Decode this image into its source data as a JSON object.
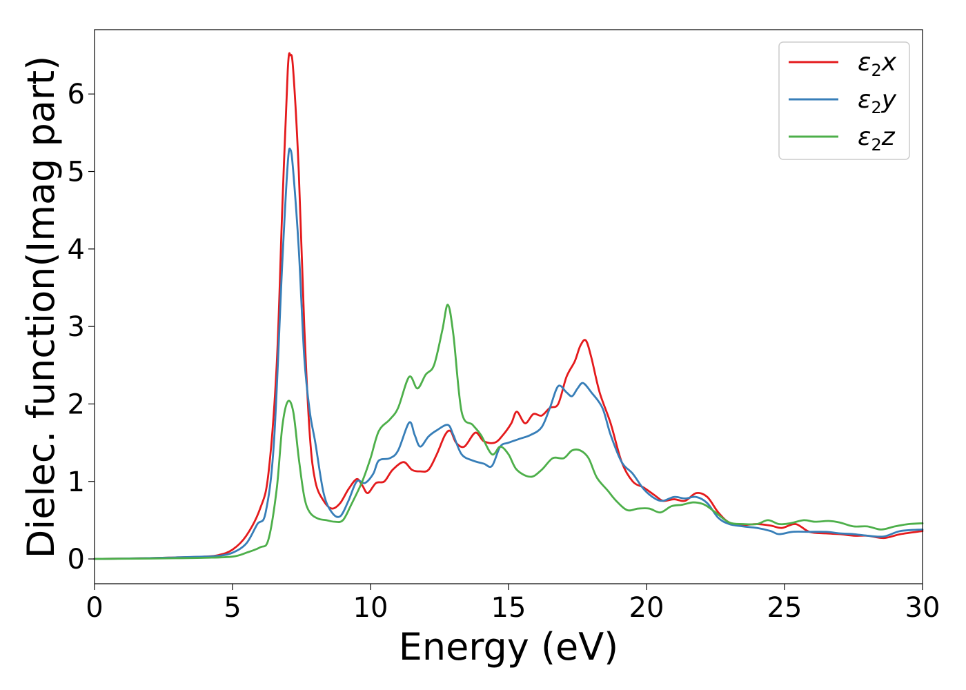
{
  "chart_data": {
    "type": "line",
    "xlabel": "Energy (eV)",
    "ylabel": "Dielec. function(Imag part)",
    "xlim": [
      0,
      30
    ],
    "ylim": [
      -0.32,
      6.83
    ],
    "xticks": [
      0,
      5,
      10,
      15,
      20,
      25,
      30
    ],
    "yticks": [
      0,
      1,
      2,
      3,
      4,
      5,
      6
    ],
    "grid": false,
    "legend_position": "top-right",
    "series": [
      {
        "name": "ε₂x",
        "legend_base": "ε",
        "legend_sub": "2",
        "legend_suffix": "x",
        "color": "#e41a1c",
        "points": [
          [
            0,
            0
          ],
          [
            2,
            0.01
          ],
          [
            3,
            0.02
          ],
          [
            4,
            0.03
          ],
          [
            4.5,
            0.05
          ],
          [
            5,
            0.12
          ],
          [
            5.5,
            0.3
          ],
          [
            6,
            0.65
          ],
          [
            6.3,
            1.1
          ],
          [
            6.6,
            2.5
          ],
          [
            6.8,
            4.5
          ],
          [
            7,
            6.3
          ],
          [
            7.1,
            6.5
          ],
          [
            7.2,
            6.3
          ],
          [
            7.4,
            5.0
          ],
          [
            7.6,
            3.0
          ],
          [
            7.8,
            1.6
          ],
          [
            8,
            1.0
          ],
          [
            8.3,
            0.75
          ],
          [
            8.6,
            0.65
          ],
          [
            8.9,
            0.72
          ],
          [
            9.2,
            0.9
          ],
          [
            9.5,
            1.03
          ],
          [
            9.7,
            0.95
          ],
          [
            9.9,
            0.85
          ],
          [
            10.2,
            0.98
          ],
          [
            10.5,
            1.0
          ],
          [
            10.8,
            1.15
          ],
          [
            11.2,
            1.25
          ],
          [
            11.5,
            1.15
          ],
          [
            11.8,
            1.13
          ],
          [
            12.1,
            1.15
          ],
          [
            12.4,
            1.35
          ],
          [
            12.7,
            1.6
          ],
          [
            12.9,
            1.65
          ],
          [
            13.1,
            1.5
          ],
          [
            13.4,
            1.45
          ],
          [
            13.8,
            1.63
          ],
          [
            14.1,
            1.52
          ],
          [
            14.5,
            1.5
          ],
          [
            14.8,
            1.6
          ],
          [
            15.1,
            1.75
          ],
          [
            15.3,
            1.9
          ],
          [
            15.6,
            1.75
          ],
          [
            15.9,
            1.87
          ],
          [
            16.2,
            1.85
          ],
          [
            16.5,
            1.95
          ],
          [
            16.8,
            2.0
          ],
          [
            17.1,
            2.35
          ],
          [
            17.4,
            2.55
          ],
          [
            17.6,
            2.75
          ],
          [
            17.8,
            2.82
          ],
          [
            18.0,
            2.6
          ],
          [
            18.3,
            2.15
          ],
          [
            18.7,
            1.75
          ],
          [
            19.1,
            1.25
          ],
          [
            19.5,
            1.0
          ],
          [
            19.9,
            0.92
          ],
          [
            20.3,
            0.82
          ],
          [
            20.6,
            0.75
          ],
          [
            21.0,
            0.77
          ],
          [
            21.4,
            0.75
          ],
          [
            21.8,
            0.85
          ],
          [
            22.2,
            0.8
          ],
          [
            22.6,
            0.6
          ],
          [
            23.0,
            0.47
          ],
          [
            23.5,
            0.44
          ],
          [
            24.0,
            0.45
          ],
          [
            24.5,
            0.43
          ],
          [
            24.9,
            0.4
          ],
          [
            25.4,
            0.45
          ],
          [
            25.9,
            0.35
          ],
          [
            26.5,
            0.33
          ],
          [
            27.0,
            0.32
          ],
          [
            27.5,
            0.3
          ],
          [
            28.0,
            0.3
          ],
          [
            28.6,
            0.27
          ],
          [
            29.2,
            0.32
          ],
          [
            30,
            0.36
          ]
        ]
      },
      {
        "name": "ε₂y",
        "legend_base": "ε",
        "legend_sub": "2",
        "legend_suffix": "y",
        "color": "#377eb8",
        "points": [
          [
            0,
            0
          ],
          [
            2,
            0.01
          ],
          [
            3,
            0.02
          ],
          [
            4,
            0.03
          ],
          [
            4.5,
            0.04
          ],
          [
            5,
            0.08
          ],
          [
            5.5,
            0.2
          ],
          [
            5.9,
            0.45
          ],
          [
            6.2,
            0.6
          ],
          [
            6.5,
            1.5
          ],
          [
            6.8,
            3.8
          ],
          [
            7,
            5.1
          ],
          [
            7.1,
            5.28
          ],
          [
            7.2,
            5.0
          ],
          [
            7.4,
            4.0
          ],
          [
            7.6,
            2.6
          ],
          [
            7.8,
            1.9
          ],
          [
            8,
            1.5
          ],
          [
            8.3,
            0.85
          ],
          [
            8.6,
            0.6
          ],
          [
            8.9,
            0.55
          ],
          [
            9.2,
            0.75
          ],
          [
            9.5,
            1.0
          ],
          [
            9.8,
            0.98
          ],
          [
            10.1,
            1.1
          ],
          [
            10.3,
            1.27
          ],
          [
            10.7,
            1.3
          ],
          [
            11.0,
            1.4
          ],
          [
            11.4,
            1.76
          ],
          [
            11.6,
            1.6
          ],
          [
            11.8,
            1.45
          ],
          [
            12.1,
            1.58
          ],
          [
            12.4,
            1.66
          ],
          [
            12.8,
            1.73
          ],
          [
            13.0,
            1.6
          ],
          [
            13.3,
            1.35
          ],
          [
            13.7,
            1.27
          ],
          [
            14.1,
            1.23
          ],
          [
            14.4,
            1.2
          ],
          [
            14.7,
            1.45
          ],
          [
            15.0,
            1.5
          ],
          [
            15.4,
            1.55
          ],
          [
            15.8,
            1.6
          ],
          [
            16.2,
            1.7
          ],
          [
            16.5,
            1.95
          ],
          [
            16.8,
            2.23
          ],
          [
            17.1,
            2.15
          ],
          [
            17.3,
            2.1
          ],
          [
            17.5,
            2.2
          ],
          [
            17.7,
            2.27
          ],
          [
            18.0,
            2.15
          ],
          [
            18.4,
            1.95
          ],
          [
            18.7,
            1.6
          ],
          [
            19.1,
            1.25
          ],
          [
            19.5,
            1.1
          ],
          [
            19.9,
            0.9
          ],
          [
            20.3,
            0.78
          ],
          [
            20.6,
            0.75
          ],
          [
            21.0,
            0.8
          ],
          [
            21.4,
            0.78
          ],
          [
            21.8,
            0.8
          ],
          [
            22.2,
            0.72
          ],
          [
            22.6,
            0.53
          ],
          [
            23.0,
            0.45
          ],
          [
            23.5,
            0.42
          ],
          [
            24.0,
            0.4
          ],
          [
            24.5,
            0.36
          ],
          [
            24.8,
            0.32
          ],
          [
            25.3,
            0.35
          ],
          [
            25.9,
            0.35
          ],
          [
            26.5,
            0.35
          ],
          [
            27.0,
            0.33
          ],
          [
            27.5,
            0.32
          ],
          [
            28.0,
            0.3
          ],
          [
            28.6,
            0.29
          ],
          [
            29.2,
            0.36
          ],
          [
            30,
            0.38
          ]
        ]
      },
      {
        "name": "ε₂z",
        "legend_base": "ε",
        "legend_sub": "2",
        "legend_suffix": "z",
        "color": "#4daf4a",
        "points": [
          [
            0,
            0
          ],
          [
            2,
            0.005
          ],
          [
            3,
            0.01
          ],
          [
            4,
            0.015
          ],
          [
            5,
            0.03
          ],
          [
            5.5,
            0.08
          ],
          [
            6,
            0.15
          ],
          [
            6.3,
            0.25
          ],
          [
            6.6,
            0.9
          ],
          [
            6.8,
            1.7
          ],
          [
            7.0,
            2.03
          ],
          [
            7.2,
            1.9
          ],
          [
            7.4,
            1.3
          ],
          [
            7.6,
            0.8
          ],
          [
            7.8,
            0.6
          ],
          [
            8.1,
            0.52
          ],
          [
            8.4,
            0.5
          ],
          [
            8.7,
            0.48
          ],
          [
            9.0,
            0.5
          ],
          [
            9.3,
            0.7
          ],
          [
            9.7,
            1.0
          ],
          [
            10.0,
            1.3
          ],
          [
            10.3,
            1.65
          ],
          [
            10.7,
            1.8
          ],
          [
            11.0,
            1.95
          ],
          [
            11.4,
            2.35
          ],
          [
            11.7,
            2.2
          ],
          [
            12.0,
            2.38
          ],
          [
            12.3,
            2.5
          ],
          [
            12.6,
            2.95
          ],
          [
            12.8,
            3.28
          ],
          [
            13.0,
            2.9
          ],
          [
            13.3,
            1.9
          ],
          [
            13.7,
            1.73
          ],
          [
            14.0,
            1.6
          ],
          [
            14.4,
            1.35
          ],
          [
            14.7,
            1.45
          ],
          [
            15.0,
            1.35
          ],
          [
            15.3,
            1.15
          ],
          [
            15.8,
            1.06
          ],
          [
            16.2,
            1.15
          ],
          [
            16.6,
            1.3
          ],
          [
            17.0,
            1.3
          ],
          [
            17.3,
            1.4
          ],
          [
            17.6,
            1.4
          ],
          [
            17.9,
            1.3
          ],
          [
            18.2,
            1.05
          ],
          [
            18.6,
            0.88
          ],
          [
            18.9,
            0.75
          ],
          [
            19.3,
            0.63
          ],
          [
            19.7,
            0.65
          ],
          [
            20.1,
            0.65
          ],
          [
            20.5,
            0.6
          ],
          [
            20.9,
            0.68
          ],
          [
            21.3,
            0.7
          ],
          [
            21.7,
            0.73
          ],
          [
            22.1,
            0.7
          ],
          [
            22.5,
            0.6
          ],
          [
            23.0,
            0.47
          ],
          [
            23.5,
            0.45
          ],
          [
            24.0,
            0.45
          ],
          [
            24.4,
            0.5
          ],
          [
            24.8,
            0.45
          ],
          [
            25.2,
            0.46
          ],
          [
            25.7,
            0.5
          ],
          [
            26.1,
            0.48
          ],
          [
            26.6,
            0.49
          ],
          [
            27.0,
            0.47
          ],
          [
            27.5,
            0.42
          ],
          [
            28.0,
            0.42
          ],
          [
            28.5,
            0.38
          ],
          [
            29.0,
            0.42
          ],
          [
            29.5,
            0.45
          ],
          [
            30,
            0.46
          ]
        ]
      }
    ]
  }
}
